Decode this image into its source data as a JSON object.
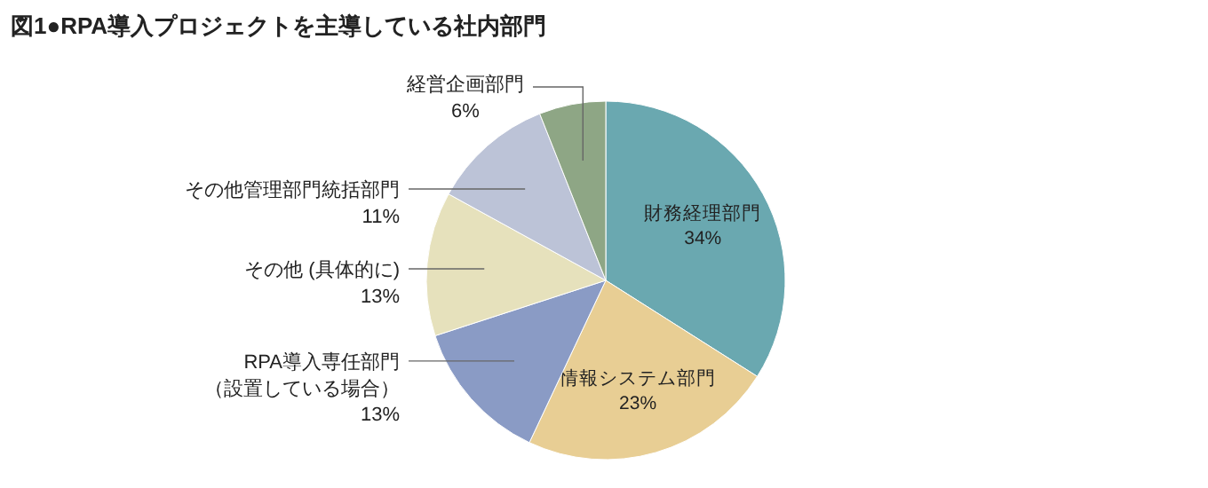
{
  "chart_data": {
    "type": "pie",
    "title": "図1●RPA導入プロジェクトを主導している社内部門",
    "categories": [
      "財務経理部門",
      "情報システム部門",
      "RPA導入専任部門（設置している場合）",
      "その他 (具体的に)",
      "その他管理部門統括部門",
      "経営企画部門"
    ],
    "values": [
      34,
      23,
      13,
      13,
      11,
      6
    ],
    "value_labels": [
      "34%",
      "23%",
      "13%",
      "13%",
      "11%",
      "6%"
    ],
    "colors": [
      "#6aa8b0",
      "#e8ce94",
      "#8a9bc5",
      "#e6e1bc",
      "#bcc3d7",
      "#8ea685"
    ]
  }
}
